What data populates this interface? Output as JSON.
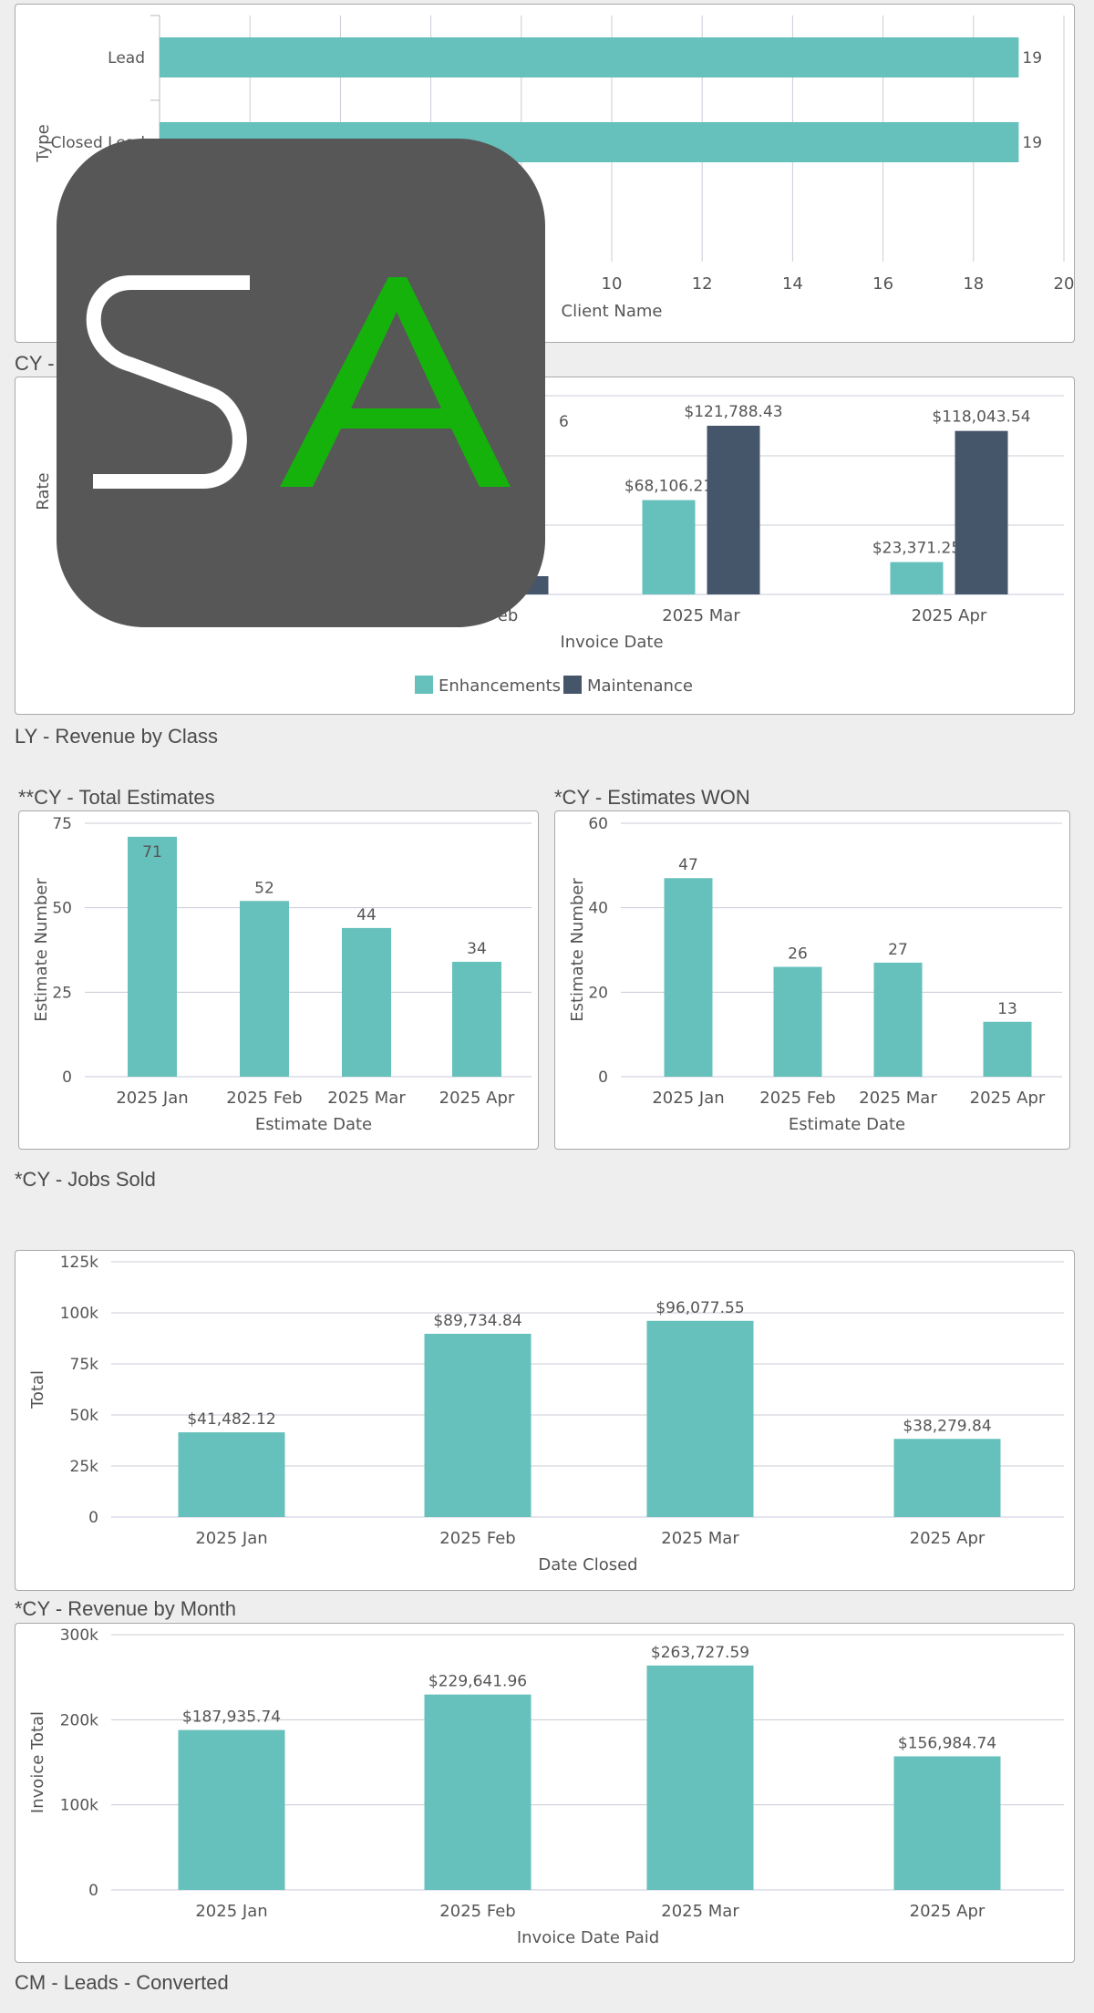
{
  "colors": {
    "teal": "#66c0bb",
    "navy": "#45556a",
    "grid": "#c8ccd6",
    "page_bg": "#eeeeee"
  },
  "sections": {
    "cy_type": "CY -",
    "ly_revenue_by_class": "LY - Revenue by Class",
    "cy_total_estimates": "**CY - Total Estimates",
    "cy_estimates_won": "*CY - Estimates WON",
    "cy_jobs_sold": "*CY - Jobs Sold",
    "cy_revenue_by_month": "*CY - Revenue by Month",
    "cm_leads_converted": "CM - Leads - Converted"
  },
  "logo": {
    "text": "SA",
    "icon": "sa-logo-icon",
    "letter_s_color": "#ffffff",
    "letter_a_color": "#15b20c",
    "bg_color": "#575757"
  },
  "chart_data": [
    {
      "id": "lead-type",
      "type": "bar",
      "orientation": "horizontal",
      "categories": [
        "Lead",
        "Closed Lead"
      ],
      "values": [
        19,
        19
      ],
      "xlabel": "Client Name",
      "ylabel": "Type",
      "xlim": [
        0,
        20
      ],
      "xticks": [
        10,
        12,
        14,
        16,
        18,
        20
      ],
      "grid": true
    },
    {
      "id": "revenue-class",
      "type": "bar",
      "categories": [
        "2025 Feb",
        "2025 Mar",
        "2025 Apr"
      ],
      "visible_category_labels": [
        "eb",
        "2025 Mar",
        "2025 Apr"
      ],
      "series": [
        {
          "name": "Enhancements",
          "values": [
            null,
            68106.21,
            23371.25
          ],
          "labels": [
            "",
            "$68,106.21",
            "$23,371.25"
          ]
        },
        {
          "name": "Maintenance",
          "values": [
            null,
            121788.43,
            118043.54
          ],
          "labels": [
            "6",
            "$121,788.43",
            "$118,043.54"
          ]
        }
      ],
      "xlabel": "Invoice Date",
      "ylabel": "Rate",
      "legend": "bottom",
      "grid": true
    },
    {
      "id": "total-estimates",
      "type": "bar",
      "categories": [
        "2025 Jan",
        "2025 Feb",
        "2025 Mar",
        "2025 Apr"
      ],
      "values": [
        71,
        52,
        44,
        34
      ],
      "xlabel": "Estimate Date",
      "ylabel": "Estimate Number",
      "ylim": [
        0,
        75
      ],
      "yticks": [
        "0",
        "25",
        "50",
        "75"
      ],
      "grid": true
    },
    {
      "id": "estimates-won",
      "type": "bar",
      "categories": [
        "2025 Jan",
        "2025 Feb",
        "2025 Mar",
        "2025 Apr"
      ],
      "values": [
        47,
        26,
        27,
        13
      ],
      "xlabel": "Estimate Date",
      "ylabel": "Estimate Number",
      "ylim": [
        0,
        60
      ],
      "yticks": [
        "0",
        "20",
        "40",
        "60"
      ],
      "grid": true
    },
    {
      "id": "jobs-sold",
      "type": "bar",
      "categories": [
        "2025 Jan",
        "2025 Feb",
        "2025 Mar",
        "2025 Apr"
      ],
      "values": [
        41482.12,
        89734.84,
        96077.55,
        38279.84
      ],
      "labels": [
        "$41,482.12",
        "$89,734.84",
        "$96,077.55",
        "$38,279.84"
      ],
      "xlabel": "Date Closed",
      "ylabel": "Total",
      "ylim": [
        0,
        125000
      ],
      "yticks": [
        "0",
        "25k",
        "50k",
        "75k",
        "100k",
        "125k"
      ],
      "grid": true
    },
    {
      "id": "revenue-month",
      "type": "bar",
      "categories": [
        "2025 Jan",
        "2025 Feb",
        "2025 Mar",
        "2025 Apr"
      ],
      "values": [
        187935.74,
        229641.96,
        263727.59,
        156984.74
      ],
      "labels": [
        "$187,935.74",
        "$229,641.96",
        "$263,727.59",
        "$156,984.74"
      ],
      "xlabel": "Invoice Date Paid",
      "ylabel": "Invoice Total",
      "ylim": [
        0,
        300000
      ],
      "yticks": [
        "0",
        "100k",
        "200k",
        "300k"
      ],
      "grid": true
    }
  ]
}
